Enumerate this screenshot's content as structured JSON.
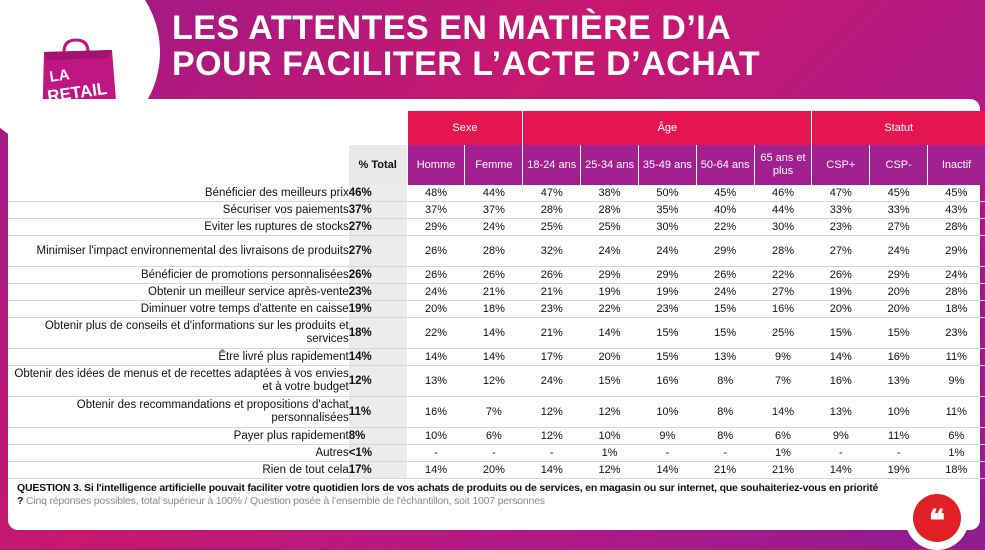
{
  "logo": {
    "text": "LA RETAIL TECH"
  },
  "title": {
    "line1": "LES ATTENTES EN MATIÈRE D’IA",
    "line2": "POUR FACILITER L’ACTE D’ACHAT"
  },
  "table": {
    "groups": [
      "Sexe",
      "Âge",
      "Statut"
    ],
    "total_header": "% Total",
    "columns": [
      "Homme",
      "Femme",
      "18-24 ans",
      "25-34 ans",
      "35-49 ans",
      "50-64 ans",
      "65 ans et plus",
      "CSP+",
      "CSP-",
      "Inactif"
    ],
    "rows": [
      {
        "label": "Bénéficier des meilleurs prix",
        "total": "46%",
        "values": [
          "48%",
          "44%",
          "47%",
          "38%",
          "50%",
          "45%",
          "46%",
          "47%",
          "45%",
          "45%"
        ]
      },
      {
        "label": "Sécuriser vos paiements",
        "total": "37%",
        "values": [
          "37%",
          "37%",
          "28%",
          "28%",
          "35%",
          "40%",
          "44%",
          "33%",
          "33%",
          "43%"
        ]
      },
      {
        "label": "Eviter les ruptures de stocks",
        "total": "27%",
        "values": [
          "29%",
          "24%",
          "25%",
          "25%",
          "30%",
          "22%",
          "30%",
          "23%",
          "27%",
          "28%"
        ]
      },
      {
        "label": "Minimiser l'impact environnemental des livraisons de produits",
        "total": "27%",
        "values": [
          "26%",
          "28%",
          "32%",
          "24%",
          "24%",
          "29%",
          "28%",
          "27%",
          "24%",
          "29%"
        ]
      },
      {
        "label": "Bénéficier de promotions personnalisées",
        "total": "26%",
        "values": [
          "26%",
          "26%",
          "26%",
          "29%",
          "29%",
          "26%",
          "22%",
          "26%",
          "29%",
          "24%"
        ]
      },
      {
        "label": "Obtenir un meilleur service après-vente",
        "total": "23%",
        "values": [
          "24%",
          "21%",
          "21%",
          "19%",
          "19%",
          "24%",
          "27%",
          "19%",
          "20%",
          "28%"
        ]
      },
      {
        "label": "Diminuer votre temps d'attente en caisse",
        "total": "19%",
        "values": [
          "20%",
          "18%",
          "23%",
          "22%",
          "23%",
          "15%",
          "16%",
          "20%",
          "20%",
          "18%"
        ]
      },
      {
        "label": "Obtenir plus de conseils et d'informations sur les produits et services",
        "total": "18%",
        "values": [
          "22%",
          "14%",
          "21%",
          "14%",
          "15%",
          "15%",
          "25%",
          "15%",
          "15%",
          "23%"
        ]
      },
      {
        "label": "Être livré plus rapidement",
        "total": "14%",
        "values": [
          "14%",
          "14%",
          "17%",
          "20%",
          "15%",
          "13%",
          "9%",
          "14%",
          "16%",
          "11%"
        ]
      },
      {
        "label": "Obtenir des idées de menus et de recettes adaptées à vos envies et à votre budget",
        "total": "12%",
        "values": [
          "13%",
          "12%",
          "24%",
          "15%",
          "16%",
          "8%",
          "7%",
          "16%",
          "13%",
          "9%"
        ]
      },
      {
        "label": "Obtenir des recommandations et propositions d'achat personnalisées",
        "total": "11%",
        "values": [
          "16%",
          "7%",
          "12%",
          "12%",
          "10%",
          "8%",
          "14%",
          "13%",
          "10%",
          "11%"
        ]
      },
      {
        "label": "Payer plus rapidement",
        "total": "8%",
        "values": [
          "10%",
          "6%",
          "12%",
          "10%",
          "9%",
          "8%",
          "6%",
          "9%",
          "11%",
          "6%"
        ]
      },
      {
        "label": "Autres",
        "total": "<1%",
        "values": [
          "-",
          "-",
          "-",
          "1%",
          "-",
          "-",
          "1%",
          "-",
          "-",
          "1%"
        ]
      },
      {
        "label": "Rien de tout cela",
        "total": "17%",
        "values": [
          "14%",
          "20%",
          "14%",
          "12%",
          "14%",
          "21%",
          "21%",
          "14%",
          "19%",
          "18%"
        ]
      }
    ]
  },
  "question": {
    "main": "QUESTION 3. Si l'intelligence artificielle pouvait faciliter votre quotidien lors de vos achats de produits ou de services, en magasin ou sur internet, que souhaiteriez-vous en priorité ?",
    "note": "Cinq réponses possibles, total supérieur à 100% / Question posée à l’ensemble de l'échantillon, soit 1007 personnes"
  },
  "quote_icon": "quote-icon",
  "colors": {
    "accent": "#e5154f",
    "purple": "#a21f8f",
    "quote_red": "#e11f26"
  }
}
